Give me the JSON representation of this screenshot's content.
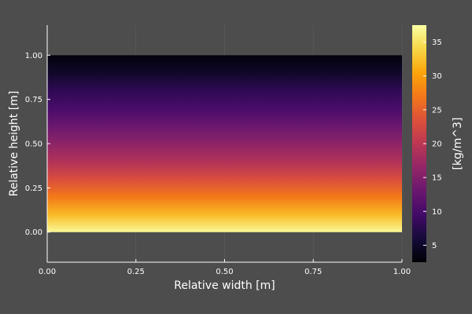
{
  "chart_data": {
    "type": "heatmap",
    "title": "",
    "xlabel": "Relative width [m]",
    "ylabel": "Relative height [m]",
    "colorbar_label": "[kg/m^3]",
    "colormap": "inferno",
    "background_color": "#4d4d4d",
    "grid": true,
    "xlim": [
      0.0,
      1.0
    ],
    "ylim": [
      -0.17,
      1.17
    ],
    "x_ticks": [
      "0.00",
      "0.25",
      "0.50",
      "0.75",
      "1.00"
    ],
    "y_ticks": [
      "0.00",
      "0.25",
      "0.50",
      "0.75",
      "1.00"
    ],
    "data_extent": {
      "x": [
        0.0,
        1.0
      ],
      "y": [
        0.0,
        1.0
      ]
    },
    "value_range": [
      2.5,
      37.5
    ],
    "colorbar_ticks": [
      "5",
      "10",
      "15",
      "20",
      "25",
      "30",
      "35"
    ],
    "profile": {
      "y": [
        0.0,
        0.1,
        0.2,
        0.3,
        0.4,
        0.5,
        0.6,
        0.7,
        0.8,
        0.9,
        1.0
      ],
      "values": [
        37,
        32,
        27,
        23,
        19,
        16,
        13,
        10,
        8,
        5,
        3
      ]
    }
  }
}
